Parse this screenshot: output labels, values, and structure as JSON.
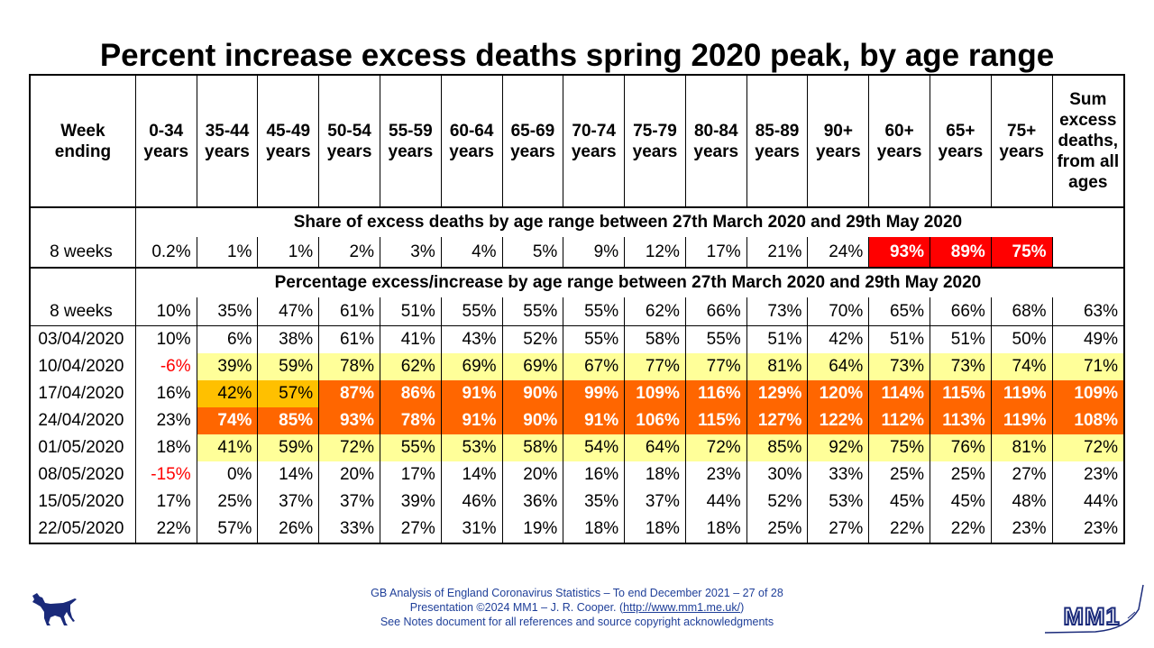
{
  "title": "Percent increase excess deaths spring 2020 peak, by age range",
  "header": {
    "week_label": "Week ending",
    "columns": [
      "0-34 years",
      "35-44 years",
      "45-49 years",
      "50-54 years",
      "55-59 years",
      "60-64 years",
      "65-69 years",
      "70-74 years",
      "75-79 years",
      "80-84 years",
      "85-89 years",
      "90+ years",
      "60+ years",
      "65+ years",
      "75+ years",
      "Sum excess deaths, from all ages"
    ]
  },
  "share_section": {
    "title": "Share of excess deaths by age range between 27th March 2020 and 29th May 2020",
    "row_label": "8 weeks",
    "values": [
      "0.2%",
      "1%",
      "1%",
      "2%",
      "3%",
      "4%",
      "5%",
      "9%",
      "12%",
      "17%",
      "21%",
      "24%",
      "93%",
      "89%",
      "75%",
      ""
    ]
  },
  "increase_section": {
    "title": "Percentage excess/increase by age range between 27th March 2020 and 29th May 2020",
    "row_label": "8 weeks",
    "values": [
      "10%",
      "35%",
      "47%",
      "61%",
      "51%",
      "55%",
      "55%",
      "55%",
      "62%",
      "66%",
      "73%",
      "70%",
      "65%",
      "66%",
      "68%",
      "63%"
    ]
  },
  "weekly_rows": [
    {
      "week": "03/04/2020",
      "values": [
        "10%",
        "6%",
        "38%",
        "61%",
        "41%",
        "43%",
        "52%",
        "55%",
        "58%",
        "55%",
        "51%",
        "42%",
        "51%",
        "51%",
        "50%",
        "49%"
      ]
    },
    {
      "week": "10/04/2020",
      "values": [
        "-6%",
        "39%",
        "59%",
        "78%",
        "62%",
        "69%",
        "69%",
        "67%",
        "77%",
        "77%",
        "81%",
        "64%",
        "73%",
        "73%",
        "74%",
        "71%"
      ]
    },
    {
      "week": "17/04/2020",
      "values": [
        "16%",
        "42%",
        "57%",
        "87%",
        "86%",
        "91%",
        "90%",
        "99%",
        "109%",
        "116%",
        "129%",
        "120%",
        "114%",
        "115%",
        "119%",
        "109%"
      ]
    },
    {
      "week": "24/04/2020",
      "values": [
        "23%",
        "74%",
        "85%",
        "93%",
        "78%",
        "91%",
        "90%",
        "91%",
        "106%",
        "115%",
        "127%",
        "122%",
        "112%",
        "113%",
        "119%",
        "108%"
      ]
    },
    {
      "week": "01/05/2020",
      "values": [
        "18%",
        "41%",
        "59%",
        "72%",
        "55%",
        "53%",
        "58%",
        "54%",
        "64%",
        "72%",
        "85%",
        "92%",
        "75%",
        "76%",
        "81%",
        "72%"
      ]
    },
    {
      "week": "08/05/2020",
      "values": [
        "-15%",
        "0%",
        "14%",
        "20%",
        "17%",
        "14%",
        "20%",
        "16%",
        "18%",
        "23%",
        "30%",
        "33%",
        "25%",
        "25%",
        "27%",
        "23%"
      ]
    },
    {
      "week": "15/05/2020",
      "values": [
        "17%",
        "25%",
        "37%",
        "37%",
        "39%",
        "46%",
        "36%",
        "35%",
        "37%",
        "44%",
        "52%",
        "53%",
        "45%",
        "45%",
        "48%",
        "44%"
      ]
    },
    {
      "week": "22/05/2020",
      "values": [
        "22%",
        "57%",
        "26%",
        "33%",
        "27%",
        "31%",
        "19%",
        "18%",
        "18%",
        "18%",
        "25%",
        "27%",
        "22%",
        "22%",
        "23%",
        "23%"
      ]
    }
  ],
  "colors": {
    "light_yellow": "#ffff99",
    "orange": "#ff6600",
    "amber": "#ffc000",
    "red": "#ff0000",
    "footer_blue": "#1f3f99"
  },
  "footer": {
    "line1": "GB Analysis of England Coronavirus Statistics – To end December 2021 – 27 of 28",
    "line2_prefix": "Presentation ©2024 MM1 – J. R. Cooper. (",
    "line2_link": "http://www.mm1.me.uk/",
    "line2_suffix": ")",
    "line3": "See Notes document for all references and source copyright acknowledgments"
  },
  "logo_text": "MM1",
  "icons": {
    "dog": "dog-silhouette-icon",
    "logo": "mm1-logo-icon"
  }
}
